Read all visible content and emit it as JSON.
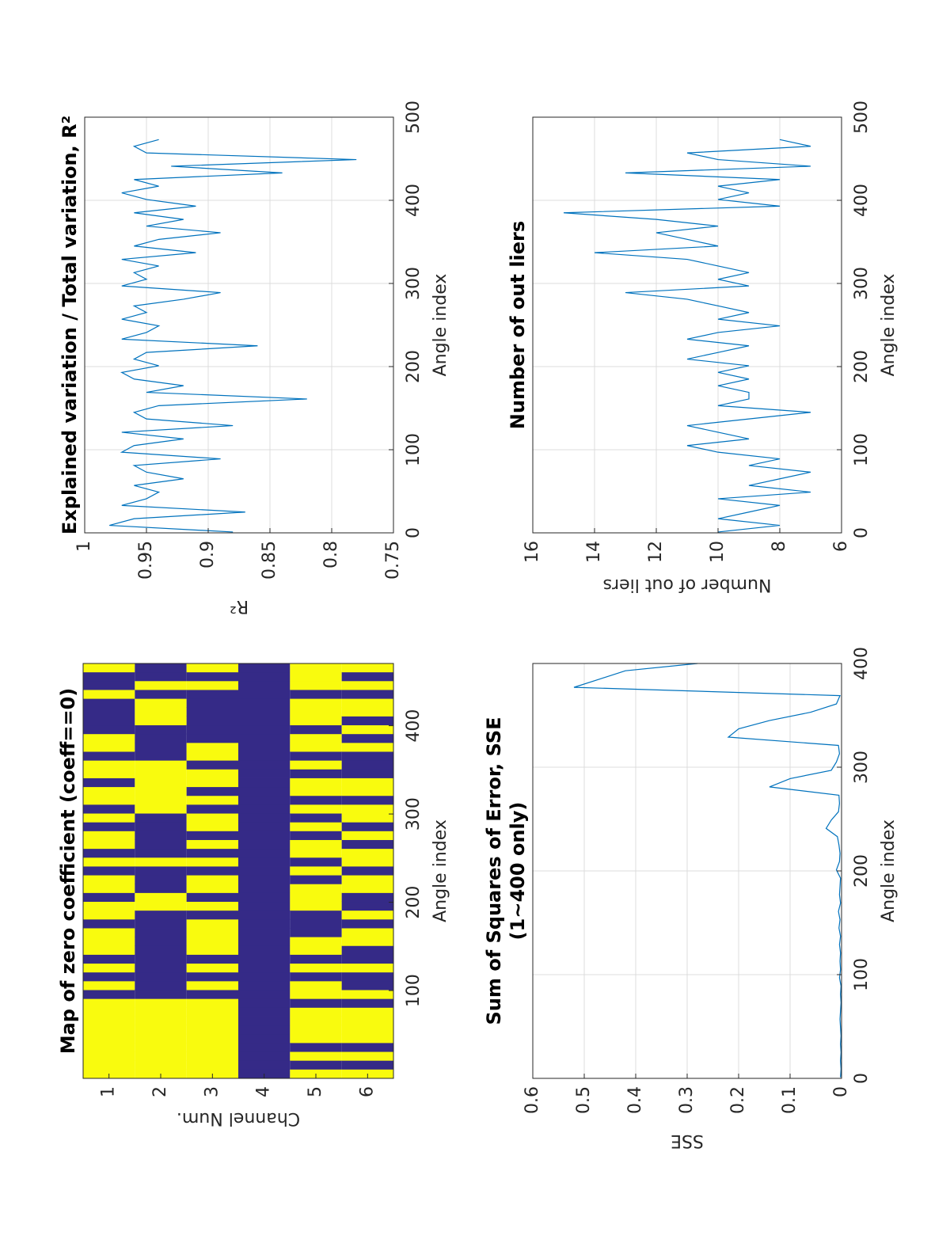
{
  "chart_data": [
    {
      "type": "heatmap",
      "title": "Map of zero coefficient (coeff==0)",
      "xlabel": "Angle index",
      "ylabel": "Channel Num.",
      "z": [
        [
          1,
          1,
          1,
          1,
          1,
          1,
          1,
          1,
          1,
          0,
          1,
          0,
          1,
          0,
          1,
          1,
          1,
          0,
          1,
          1,
          0,
          1,
          1,
          0,
          1,
          0,
          1,
          1,
          0,
          1,
          0,
          1,
          1,
          0,
          1,
          1,
          0,
          1,
          1,
          0,
          0,
          0,
          0,
          1,
          0,
          0,
          1
        ],
        [
          1,
          1,
          1,
          1,
          1,
          1,
          1,
          1,
          1,
          0,
          0,
          0,
          0,
          0,
          0,
          0,
          0,
          0,
          0,
          1,
          1,
          0,
          0,
          0,
          1,
          0,
          0,
          0,
          0,
          0,
          1,
          1,
          1,
          1,
          1,
          1,
          0,
          0,
          0,
          0,
          1,
          1,
          1,
          0,
          1,
          0,
          0
        ],
        [
          1,
          1,
          1,
          1,
          1,
          1,
          1,
          1,
          1,
          0,
          1,
          0,
          1,
          0,
          1,
          1,
          1,
          1,
          0,
          1,
          0,
          1,
          1,
          0,
          1,
          0,
          1,
          0,
          1,
          1,
          0,
          1,
          0,
          1,
          1,
          0,
          1,
          1,
          0,
          0,
          0,
          0,
          0,
          0,
          1,
          0,
          1
        ],
        [
          0,
          0,
          0,
          0,
          0,
          0,
          0,
          0,
          0,
          0,
          0,
          0,
          0,
          0,
          0,
          0,
          0,
          0,
          0,
          0,
          0,
          0,
          0,
          0,
          0,
          0,
          0,
          0,
          0,
          0,
          0,
          0,
          0,
          0,
          0,
          0,
          0,
          0,
          0,
          0,
          0,
          0,
          0,
          0,
          0,
          0,
          0
        ],
        [
          1,
          0,
          1,
          0,
          1,
          1,
          1,
          1,
          0,
          1,
          1,
          0,
          1,
          0,
          1,
          1,
          0,
          0,
          0,
          1,
          1,
          1,
          0,
          1,
          0,
          1,
          1,
          0,
          1,
          0,
          1,
          0,
          1,
          1,
          0,
          1,
          0,
          1,
          1,
          0,
          1,
          1,
          1,
          0,
          1,
          1,
          1
        ],
        [
          1,
          0,
          1,
          0,
          1,
          1,
          1,
          1,
          0,
          1,
          0,
          0,
          1,
          0,
          0,
          1,
          1,
          0,
          1,
          0,
          0,
          1,
          1,
          0,
          1,
          1,
          0,
          1,
          0,
          1,
          1,
          0,
          1,
          1,
          0,
          0,
          0,
          1,
          0,
          1,
          0,
          1,
          1,
          0,
          1,
          0,
          1
        ]
      ],
      "colors": [
        "#352a87",
        "#f9fb0e"
      ],
      "xlim": [
        0.5,
        470.5
      ],
      "ylim": [
        0.5,
        6.5
      ],
      "y_reversed": true,
      "xticks": [
        100,
        200,
        300,
        400
      ],
      "yticks": [
        1,
        2,
        3,
        4,
        5,
        6
      ],
      "grid": false
    },
    {
      "type": "line",
      "title": "Explained variation / Total variation, R²",
      "xlabel": "Angle index",
      "ylabel": "R²",
      "color": "#0072bd",
      "x": [
        1,
        9,
        17,
        25,
        33,
        41,
        49,
        57,
        65,
        73,
        81,
        89,
        97,
        105,
        113,
        121,
        129,
        137,
        145,
        153,
        161,
        169,
        177,
        185,
        193,
        201,
        209,
        217,
        225,
        233,
        241,
        249,
        257,
        265,
        273,
        281,
        289,
        297,
        305,
        313,
        321,
        329,
        337,
        345,
        353,
        361,
        369,
        377,
        385,
        393,
        401,
        409,
        417,
        425,
        433,
        441,
        449,
        457,
        465,
        473
      ],
      "values": [
        0.88,
        0.98,
        0.96,
        0.87,
        0.97,
        0.95,
        0.94,
        0.96,
        0.92,
        0.95,
        0.96,
        0.89,
        0.97,
        0.96,
        0.92,
        0.97,
        0.88,
        0.95,
        0.96,
        0.94,
        0.82,
        0.95,
        0.92,
        0.96,
        0.97,
        0.94,
        0.96,
        0.95,
        0.86,
        0.97,
        0.95,
        0.94,
        0.97,
        0.95,
        0.96,
        0.92,
        0.89,
        0.97,
        0.95,
        0.96,
        0.94,
        0.97,
        0.91,
        0.96,
        0.94,
        0.89,
        0.95,
        0.92,
        0.96,
        0.91,
        0.95,
        0.97,
        0.94,
        0.96,
        0.84,
        0.93,
        0.78,
        0.95,
        0.96,
        0.94
      ],
      "xlim": [
        0,
        500
      ],
      "ylim": [
        0.75,
        1
      ],
      "xticks": [
        0,
        100,
        200,
        300,
        400,
        500
      ],
      "yticks": [
        0.75,
        0.8,
        0.85,
        0.9,
        0.95,
        1
      ],
      "grid": true
    },
    {
      "type": "line",
      "title": [
        "Sum of Squares of Error, SSE",
        "(1~400 only)"
      ],
      "xlabel": "Angle index",
      "ylabel": "SSE",
      "color": "#0072bd",
      "x": [
        1,
        9,
        17,
        25,
        33,
        41,
        49,
        57,
        65,
        73,
        81,
        89,
        97,
        105,
        113,
        121,
        129,
        137,
        145,
        153,
        161,
        169,
        177,
        185,
        193,
        201,
        209,
        217,
        225,
        233,
        241,
        249,
        257,
        265,
        273,
        281,
        289,
        297,
        305,
        313,
        321,
        329,
        337,
        345,
        353,
        361,
        369,
        377,
        385,
        393,
        400
      ],
      "values": [
        0.002,
        0.001,
        0.002,
        0.001,
        0.002,
        0.001,
        0.002,
        0.003,
        0.002,
        0.001,
        0.002,
        0.001,
        0.004,
        0.002,
        0.003,
        0.002,
        0.004,
        0.002,
        0.005,
        0.003,
        0.006,
        0.002,
        0.004,
        0.003,
        0.002,
        0.01,
        0.004,
        0.003,
        0.005,
        0.008,
        0.03,
        0.02,
        0.006,
        0.004,
        0.005,
        0.14,
        0.1,
        0.02,
        0.01,
        0.004,
        0.006,
        0.22,
        0.2,
        0.14,
        0.06,
        0.01,
        0.003,
        0.52,
        0.47,
        0.42,
        0.28
      ],
      "xlim": [
        0,
        400
      ],
      "ylim": [
        0,
        0.6
      ],
      "xticks": [
        0,
        100,
        200,
        300,
        400
      ],
      "yticks": [
        0,
        0.1,
        0.2,
        0.3,
        0.4,
        0.5,
        0.6
      ],
      "grid": true
    },
    {
      "type": "line",
      "title": "Number of out liers",
      "xlabel": "Angle index",
      "ylabel": "Number of out liers",
      "color": "#0072bd",
      "x": [
        1,
        9,
        17,
        25,
        33,
        41,
        49,
        57,
        65,
        73,
        81,
        89,
        97,
        105,
        113,
        121,
        129,
        137,
        145,
        153,
        161,
        169,
        177,
        185,
        193,
        201,
        209,
        217,
        225,
        233,
        241,
        249,
        257,
        265,
        273,
        281,
        289,
        297,
        305,
        313,
        321,
        329,
        337,
        345,
        353,
        361,
        369,
        377,
        385,
        393,
        401,
        409,
        417,
        425,
        433,
        441,
        449,
        457,
        465,
        473
      ],
      "values": [
        10,
        8,
        10,
        9,
        8,
        10,
        7,
        9,
        8,
        7,
        9,
        8,
        10,
        11,
        9,
        10,
        11,
        9,
        7,
        10,
        9,
        9,
        10,
        9,
        10,
        9,
        11,
        10,
        9,
        11,
        10,
        8,
        10,
        9,
        10,
        11,
        13,
        9,
        10,
        9,
        10,
        11,
        14,
        10,
        11,
        12,
        10,
        12,
        15,
        8,
        10,
        9,
        10,
        8,
        13,
        7,
        10,
        11,
        7,
        8
      ],
      "xlim": [
        0,
        500
      ],
      "ylim": [
        6,
        16
      ],
      "xticks": [
        0,
        100,
        200,
        300,
        400,
        500
      ],
      "yticks": [
        6,
        8,
        10,
        12,
        14,
        16
      ],
      "grid": true
    }
  ]
}
